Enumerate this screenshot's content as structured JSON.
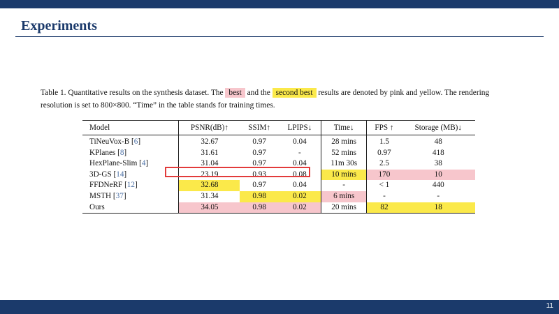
{
  "slide": {
    "title": "Experiments",
    "page_number": "11"
  },
  "caption": {
    "part1": "Table 1. Quantitative results on the synthesis dataset. The ",
    "best": "best",
    "part2": " and the ",
    "second_best": "second best",
    "part3": " results are denoted by pink and yellow. The rendering resolution is set to 800×800. “Time” in the table stands for training times."
  },
  "colors": {
    "best": "#f7c6cc",
    "second_best": "#fbe94a",
    "header_bar": "#1b3a6b",
    "highlight_box": "#e23b3b"
  },
  "table": {
    "headers": [
      "Model",
      "PSNR(dB)↑",
      "SSIM↑",
      "LPIPS↓",
      "Time↓",
      "FPS ↑",
      "Storage (MB)↓"
    ],
    "rows": [
      {
        "model": "TiNeuVox-B",
        "ref": "6",
        "psnr": "32.67",
        "ssim": "0.97",
        "lpips": "0.04",
        "time": "28 mins",
        "fps": "1.5",
        "storage": "48"
      },
      {
        "model": "KPlanes",
        "ref": "8",
        "psnr": "31.61",
        "ssim": "0.97",
        "lpips": "-",
        "time": "52 mins",
        "fps": "0.97",
        "storage": "418"
      },
      {
        "model": "HexPlane-Slim",
        "ref": "4",
        "psnr": "31.04",
        "ssim": "0.97",
        "lpips": "0.04",
        "time": "11m 30s",
        "fps": "2.5",
        "storage": "38"
      },
      {
        "model": "3D-GS",
        "ref": "14",
        "psnr": "23.19",
        "ssim": "0.93",
        "lpips": "0.08",
        "time": "10 mins",
        "fps": "170",
        "storage": "10"
      },
      {
        "model": "FFDNeRF",
        "ref": "12",
        "psnr": "32.68",
        "ssim": "0.97",
        "lpips": "0.04",
        "time": "-",
        "fps": "< 1",
        "storage": "440"
      },
      {
        "model": "MSTH",
        "ref": "37",
        "psnr": "31.34",
        "ssim": "0.98",
        "lpips": "0.02",
        "time": "6 mins",
        "fps": "-",
        "storage": "-"
      },
      {
        "model": "Ours",
        "ref": "",
        "psnr": "34.05",
        "ssim": "0.98",
        "lpips": "0.02",
        "time": "20 mins",
        "fps": "82",
        "storage": "18"
      }
    ]
  }
}
